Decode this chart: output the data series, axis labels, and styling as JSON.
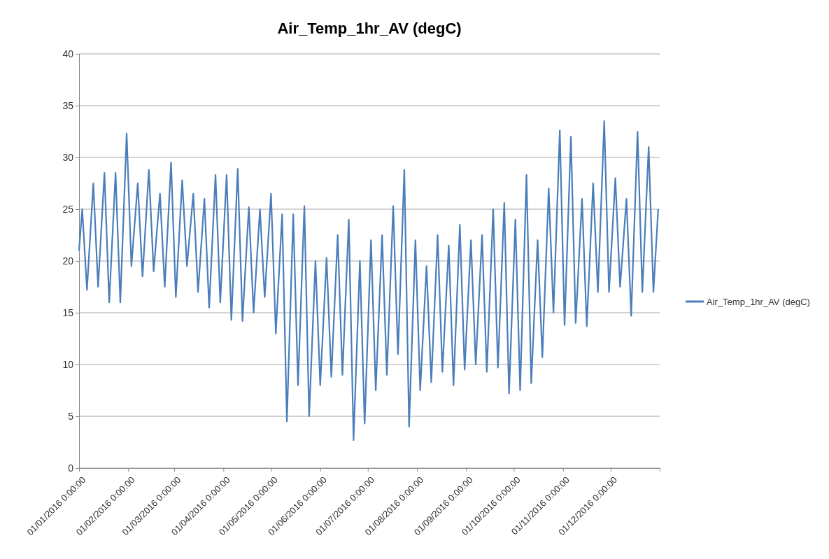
{
  "chart_data": {
    "type": "line",
    "title": "Air_Temp_1hr_AV (degC)",
    "x": [
      "2016-01-01",
      "2016-01-03",
      "2016-01-06",
      "2016-01-10",
      "2016-01-13",
      "2016-01-17",
      "2016-01-20",
      "2016-01-24",
      "2016-01-27",
      "2016-01-31",
      "2016-02-03",
      "2016-02-07",
      "2016-02-10",
      "2016-02-14",
      "2016-02-17",
      "2016-02-21",
      "2016-02-24",
      "2016-02-28",
      "2016-03-02",
      "2016-03-06",
      "2016-03-09",
      "2016-03-13",
      "2016-03-16",
      "2016-03-20",
      "2016-03-23",
      "2016-03-27",
      "2016-03-30",
      "2016-04-03",
      "2016-04-06",
      "2016-04-10",
      "2016-04-13",
      "2016-04-17",
      "2016-04-20",
      "2016-04-24",
      "2016-04-27",
      "2016-05-01",
      "2016-05-04",
      "2016-05-08",
      "2016-05-11",
      "2016-05-15",
      "2016-05-18",
      "2016-05-22",
      "2016-05-25",
      "2016-05-29",
      "2016-06-01",
      "2016-06-05",
      "2016-06-08",
      "2016-06-12",
      "2016-06-15",
      "2016-06-19",
      "2016-06-22",
      "2016-06-26",
      "2016-06-29",
      "2016-07-03",
      "2016-07-06",
      "2016-07-10",
      "2016-07-13",
      "2016-07-17",
      "2016-07-20",
      "2016-07-24",
      "2016-07-27",
      "2016-07-31",
      "2016-08-03",
      "2016-08-07",
      "2016-08-10",
      "2016-08-14",
      "2016-08-17",
      "2016-08-21",
      "2016-08-24",
      "2016-08-28",
      "2016-08-31",
      "2016-09-04",
      "2016-09-07",
      "2016-09-11",
      "2016-09-14",
      "2016-09-18",
      "2016-09-21",
      "2016-09-25",
      "2016-09-28",
      "2016-10-02",
      "2016-10-05",
      "2016-10-09",
      "2016-10-12",
      "2016-10-16",
      "2016-10-19",
      "2016-10-23",
      "2016-10-26",
      "2016-10-30",
      "2016-11-02",
      "2016-11-06",
      "2016-11-09",
      "2016-11-13",
      "2016-11-16",
      "2016-11-20",
      "2016-11-23",
      "2016-11-27",
      "2016-11-30",
      "2016-12-04",
      "2016-12-07",
      "2016-12-11",
      "2016-12-14",
      "2016-12-18",
      "2016-12-21",
      "2016-12-25",
      "2016-12-28",
      "2016-12-31"
    ],
    "series": [
      {
        "name": "Air_Temp_1hr_AV (degC)",
        "color": "#4a7ebb",
        "values": [
          21,
          25,
          17.2,
          27.5,
          17.5,
          28.5,
          16,
          28.5,
          16,
          32.3,
          19.5,
          27.5,
          18.5,
          28.8,
          19,
          26.5,
          17.5,
          29.5,
          16.5,
          27.8,
          19.5,
          26.5,
          17,
          26,
          15.5,
          28.3,
          16,
          28.3,
          14.3,
          28.9,
          14.2,
          25.2,
          15,
          25,
          16.5,
          26.5,
          13,
          24.5,
          4.5,
          24.5,
          8,
          25.3,
          5,
          20,
          8,
          20.3,
          8.8,
          22.5,
          9,
          24,
          2.7,
          20,
          4.3,
          22,
          7.5,
          22.5,
          9,
          25.3,
          11,
          28.8,
          4,
          22,
          7.5,
          19.5,
          8.3,
          22.5,
          9.3,
          21.5,
          8,
          23.5,
          9.5,
          22,
          10,
          22.5,
          9.3,
          25,
          9.7,
          25.6,
          7.2,
          24,
          7.5,
          28.3,
          8.2,
          22,
          10.7,
          27,
          15,
          32.6,
          13.8,
          32,
          14,
          26,
          13.7,
          27.5,
          17,
          33.5,
          17,
          28,
          17.5,
          26,
          14.7,
          32.5,
          17,
          31,
          17,
          25
        ]
      }
    ],
    "xlim": [
      "2016-01-01",
      "2016-12-31T23:00"
    ],
    "xticks": [
      {
        "value": "2016-01-01",
        "label": "01/01/2016 0:00:00"
      },
      {
        "value": "2016-02-01",
        "label": "01/02/2016 0:00:00"
      },
      {
        "value": "2016-03-01",
        "label": "01/03/2016 0:00:00"
      },
      {
        "value": "2016-04-01",
        "label": "01/04/2016 0:00:00"
      },
      {
        "value": "2016-05-01",
        "label": "01/05/2016 0:00:00"
      },
      {
        "value": "2016-06-01",
        "label": "01/06/2016 0:00:00"
      },
      {
        "value": "2016-07-01",
        "label": "01/07/2016 0:00:00"
      },
      {
        "value": "2016-08-01",
        "label": "01/08/2016 0:00:00"
      },
      {
        "value": "2016-09-01",
        "label": "01/09/2016 0:00:00"
      },
      {
        "value": "2016-10-01",
        "label": "01/10/2016 0:00:00"
      },
      {
        "value": "2016-11-01",
        "label": "01/11/2016 0:00:00"
      },
      {
        "value": "2016-12-01",
        "label": "01/12/2016 0:00:00"
      }
    ],
    "ylim": [
      0,
      40
    ],
    "yticks": [
      0,
      5,
      10,
      15,
      20,
      25,
      30,
      35,
      40
    ],
    "grid": "y",
    "legend": "right",
    "marker": "none",
    "line_style": "solid"
  }
}
